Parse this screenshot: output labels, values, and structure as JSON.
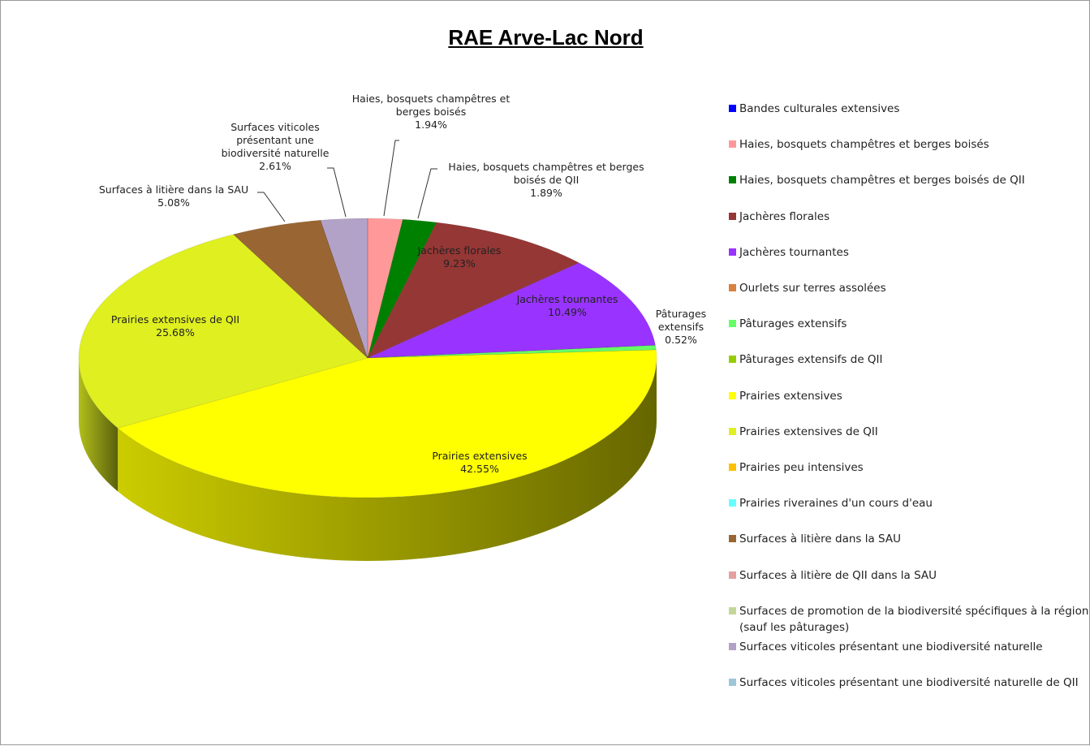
{
  "chart_data": {
    "type": "pie3d",
    "title": "RAE Arve-Lac Nord",
    "categories": [
      "Bandes culturales extensives",
      "Haies, bosquets champêtres et berges boisés",
      "Haies, bosquets champêtres et berges boisés de QII",
      "Jachères florales",
      "Jachères tournantes",
      "Ourlets sur terres assolées",
      "Pâturages extensifs",
      "Pâturages extensifs de QII",
      "Prairies extensives",
      "Prairies extensives de QII",
      "Prairies peu intensives",
      "Prairies riveraines d'un cours d'eau",
      "Surfaces à litière dans la SAU",
      "Surfaces à litière de QII dans la SAU",
      "Surfaces de promotion de la biodiversité spécifiques à la région (sauf les pâturages)",
      "Surfaces viticoles présentant une biodiversité naturelle",
      "Surfaces viticoles présentant une biodiversité naturelle de QII"
    ],
    "values": [
      0,
      1.94,
      1.89,
      9.23,
      10.49,
      0,
      0.52,
      0,
      42.55,
      25.68,
      0,
      0,
      5.08,
      0,
      0,
      2.61,
      0
    ],
    "value_labels": [
      null,
      "1.94%",
      "1.89%",
      "9.23%",
      "10.49%",
      null,
      "0.52%",
      null,
      "42.55%",
      "25.68%",
      null,
      null,
      "5.08%",
      null,
      null,
      "2.61%",
      null
    ],
    "colors": [
      "#0000ff",
      "#ff9999",
      "#008000",
      "#953735",
      "#9933ff",
      "#d9813f",
      "#66ff66",
      "#99cc00",
      "#ffff00",
      "#dfef20",
      "#ffc000",
      "#66ffff",
      "#996633",
      "#e6a0a0",
      "#c4d79b",
      "#b3a2c7",
      "#9fc6d8"
    ],
    "legend": "right"
  }
}
